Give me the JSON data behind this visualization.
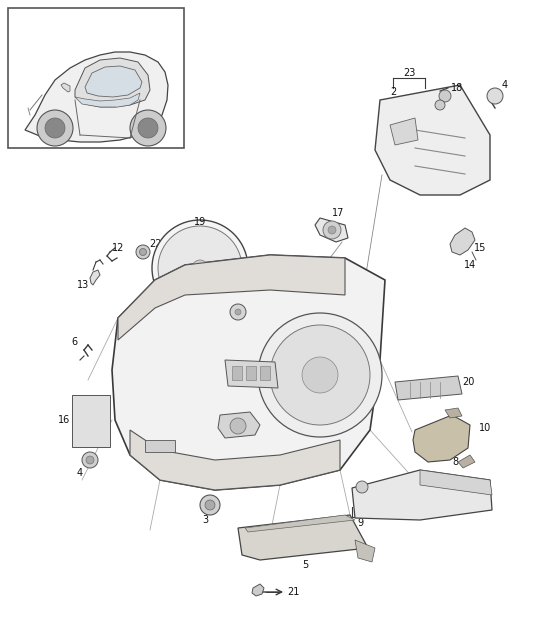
{
  "bg_color": "#ffffff",
  "line_color": "#3a3a3a",
  "label_color": "#111111",
  "fig_width": 5.45,
  "fig_height": 6.28,
  "dpi": 100
}
